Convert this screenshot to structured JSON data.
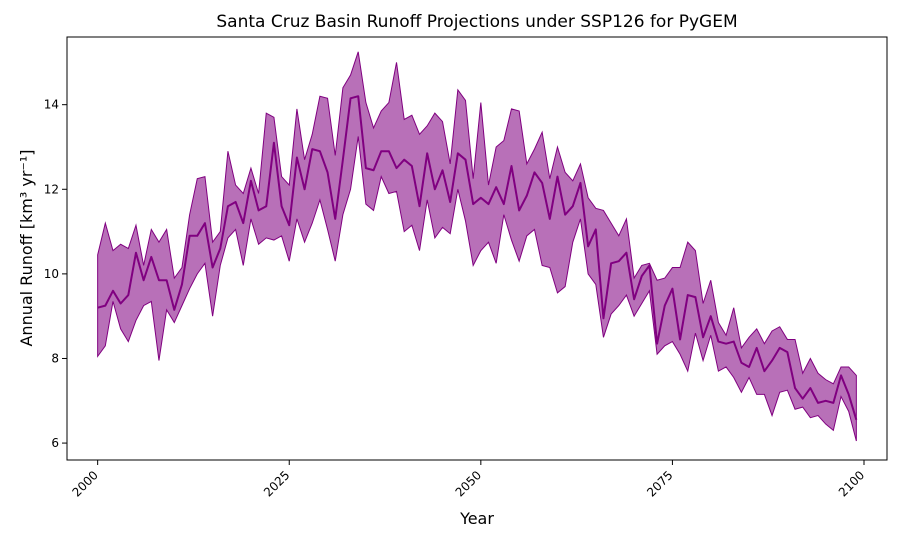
{
  "chart_data": {
    "type": "line",
    "title": "Santa Cruz Basin Runoff Projections under SSP126 for PyGEM",
    "xlabel": "Year",
    "ylabel": "Annual Runoff [km³ yr⁻¹]",
    "xlim": [
      1996,
      2103
    ],
    "ylim": [
      5.6,
      15.6
    ],
    "xticks": [
      2000,
      2025,
      2050,
      2075,
      2100
    ],
    "yticks": [
      6,
      8,
      10,
      12,
      14
    ],
    "grid": false,
    "legend": "none",
    "colors": {
      "line": "#800080",
      "band": "#a040a0"
    },
    "x": [
      2000,
      2001,
      2002,
      2003,
      2004,
      2005,
      2006,
      2007,
      2008,
      2009,
      2010,
      2011,
      2012,
      2013,
      2014,
      2015,
      2016,
      2017,
      2018,
      2019,
      2020,
      2021,
      2022,
      2023,
      2024,
      2025,
      2026,
      2027,
      2028,
      2029,
      2030,
      2031,
      2032,
      2033,
      2034,
      2035,
      2036,
      2037,
      2038,
      2039,
      2040,
      2041,
      2042,
      2043,
      2044,
      2045,
      2046,
      2047,
      2048,
      2049,
      2050,
      2051,
      2052,
      2053,
      2054,
      2055,
      2056,
      2057,
      2058,
      2059,
      2060,
      2061,
      2062,
      2063,
      2064,
      2065,
      2066,
      2067,
      2068,
      2069,
      2070,
      2071,
      2072,
      2073,
      2074,
      2075,
      2076,
      2077,
      2078,
      2079,
      2080,
      2081,
      2082,
      2083,
      2084,
      2085,
      2086,
      2087,
      2088,
      2089,
      2090,
      2091,
      2092,
      2093,
      2094,
      2095,
      2096,
      2097,
      2098,
      2099
    ],
    "series": [
      {
        "role": "mean",
        "values": [
          9.2,
          9.25,
          9.6,
          9.3,
          9.5,
          10.5,
          9.85,
          10.4,
          9.85,
          9.85,
          9.15,
          9.75,
          10.9,
          10.9,
          11.2,
          10.15,
          10.6,
          11.6,
          11.7,
          11.2,
          12.2,
          11.5,
          11.6,
          13.1,
          11.6,
          11.15,
          12.75,
          12.0,
          12.95,
          12.9,
          12.4,
          11.3,
          12.7,
          14.15,
          14.2,
          12.5,
          12.45,
          12.9,
          12.9,
          12.5,
          12.7,
          12.55,
          11.6,
          12.85,
          12.0,
          12.45,
          11.7,
          12.85,
          12.7,
          11.65,
          11.8,
          11.65,
          12.05,
          11.65,
          12.55,
          11.5,
          11.85,
          12.4,
          12.15,
          11.3,
          12.3,
          11.4,
          11.6,
          12.15,
          10.65,
          11.05,
          8.95,
          10.25,
          10.3,
          10.5,
          9.4,
          9.95,
          10.2,
          8.35,
          9.25,
          9.65,
          8.45,
          9.5,
          9.45,
          8.5,
          9.0,
          8.4,
          8.35,
          8.4,
          7.9,
          7.8,
          8.25,
          7.7,
          7.95,
          8.25,
          8.15,
          7.3,
          7.05,
          7.3,
          6.95,
          7.0,
          6.95,
          7.6,
          7.15,
          6.55
        ]
      },
      {
        "role": "upper",
        "values": [
          10.45,
          11.2,
          10.55,
          10.7,
          10.6,
          11.15,
          10.2,
          11.05,
          10.75,
          11.05,
          9.9,
          10.15,
          11.4,
          12.25,
          12.3,
          10.75,
          11.0,
          12.9,
          12.1,
          11.9,
          12.5,
          11.9,
          13.8,
          13.7,
          12.3,
          12.1,
          13.9,
          12.7,
          13.3,
          14.2,
          14.15,
          12.8,
          14.4,
          14.7,
          15.25,
          14.05,
          13.45,
          13.85,
          14.05,
          15.0,
          13.65,
          13.75,
          13.3,
          13.5,
          13.8,
          13.6,
          12.6,
          14.35,
          14.1,
          12.25,
          14.05,
          12.1,
          13.0,
          13.15,
          13.9,
          13.85,
          12.6,
          12.95,
          13.35,
          12.25,
          13.0,
          12.4,
          12.2,
          12.6,
          11.8,
          11.55,
          11.5,
          11.2,
          10.9,
          11.3,
          9.9,
          10.2,
          10.25,
          9.85,
          9.9,
          10.15,
          10.15,
          10.75,
          10.55,
          9.3,
          9.85,
          8.85,
          8.55,
          9.2,
          8.25,
          8.5,
          8.7,
          8.35,
          8.65,
          8.75,
          8.45,
          8.45,
          7.65,
          8.0,
          7.65,
          7.5,
          7.4,
          7.8,
          7.8,
          7.6
        ]
      },
      {
        "role": "lower",
        "values": [
          8.05,
          8.3,
          9.35,
          8.7,
          8.4,
          8.9,
          9.25,
          9.35,
          7.95,
          9.15,
          8.85,
          9.25,
          9.65,
          10.0,
          10.25,
          9.0,
          10.2,
          10.85,
          11.05,
          10.2,
          11.3,
          10.7,
          10.85,
          10.8,
          10.9,
          10.3,
          11.3,
          10.75,
          11.2,
          11.75,
          11.05,
          10.3,
          11.4,
          12.0,
          13.25,
          11.65,
          11.5,
          12.3,
          11.9,
          11.95,
          11.0,
          11.15,
          10.55,
          11.75,
          10.85,
          11.1,
          10.95,
          12.0,
          11.25,
          10.2,
          10.55,
          10.75,
          10.25,
          11.4,
          10.8,
          10.3,
          10.9,
          11.05,
          10.2,
          10.15,
          9.55,
          9.7,
          10.75,
          11.3,
          10.0,
          9.75,
          8.5,
          9.05,
          9.25,
          9.5,
          9.0,
          9.3,
          9.6,
          8.1,
          8.3,
          8.4,
          8.1,
          7.7,
          8.6,
          7.95,
          8.55,
          7.7,
          7.8,
          7.55,
          7.2,
          7.55,
          7.15,
          7.15,
          6.65,
          7.2,
          7.25,
          6.8,
          6.85,
          6.6,
          6.65,
          6.45,
          6.3,
          7.1,
          6.75,
          6.05
        ]
      }
    ]
  }
}
